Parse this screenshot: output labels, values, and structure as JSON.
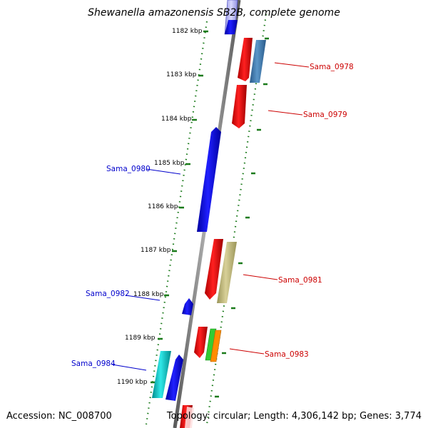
{
  "title": "Shewanella amazonensis SB2B, complete genome",
  "footer": {
    "accession": "Accession: NC_008700",
    "topology": "Topology: circular; Length: 4,306,142 bp; Genes: 3,774"
  },
  "ticks": [
    {
      "label": "1182 kbp"
    },
    {
      "label": "1183 kbp"
    },
    {
      "label": "1184 kbp"
    },
    {
      "label": "1185 kbp"
    },
    {
      "label": "1186 kbp"
    },
    {
      "label": "1187 kbp"
    },
    {
      "label": "1188 kbp"
    },
    {
      "label": "1189 kbp"
    },
    {
      "label": "1190 kbp"
    }
  ],
  "genes": [
    {
      "name": "Sama_0978",
      "strand": "plus",
      "color": "#ff0000",
      "label_color": "#cc0000"
    },
    {
      "name": "Sama_0979",
      "strand": "plus",
      "color": "#ff0000",
      "label_color": "#cc0000"
    },
    {
      "name": "Sama_0980",
      "strand": "minus",
      "color": "#0000ff",
      "label_color": "#0000cc"
    },
    {
      "name": "Sama_0981",
      "strand": "plus",
      "color": "#ff0000",
      "label_color": "#cc0000"
    },
    {
      "name": "Sama_0982",
      "strand": "minus",
      "color": "#0000ff",
      "label_color": "#0000cc"
    },
    {
      "name": "Sama_0983",
      "strand": "plus",
      "color": "#ff0000",
      "label_color": "#cc0000"
    },
    {
      "name": "Sama_0984",
      "strand": "minus",
      "color": "#00cccc",
      "label_color": "#0000cc"
    }
  ],
  "colors": {
    "backbone": "#888888",
    "tick_marks": "#1a7a1a",
    "steelblue_feature": "#4682b4",
    "khaki_feature": "#c8c080",
    "green_feature": "#33cc33",
    "orange_feature": "#ff8c00",
    "cyan_feature": "#00cccc"
  }
}
